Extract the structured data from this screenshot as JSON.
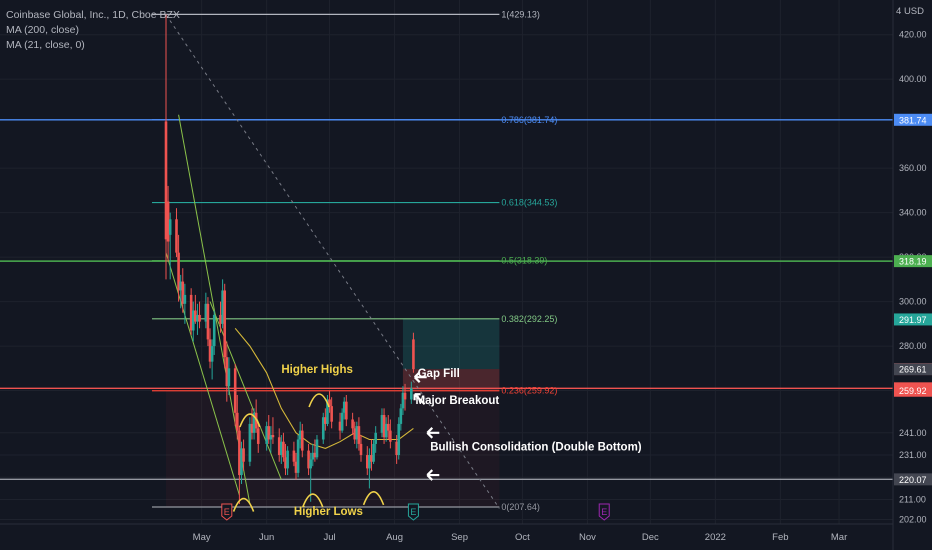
{
  "header": {
    "symbol_title": "Coinbase Global, Inc., 1D, Cboe BZX",
    "indicator_1": "MA (200, close)",
    "indicator_2": "MA (21, close, 0)",
    "currency": "USD",
    "currency_prefix": "4"
  },
  "colors": {
    "background": "#131722",
    "up": "#26a69a",
    "down": "#ef5350",
    "ma21": "#d4b83a",
    "annotation_yellow": "#f0d24a",
    "fib_level_1": "#b2b5be",
    "fib_0786": "#4c8cf5",
    "fib_0618": "#26a69a",
    "fib_05": "#4caf50",
    "fib_0382": "#81c784",
    "fib_0236": "#f44336",
    "fib_0": "#9598a1"
  },
  "chart_data": {
    "type": "candlestick",
    "ylim": [
      200,
      432
    ],
    "y_ticks": [
      202.0,
      211.0,
      221.0,
      231.0,
      241.0,
      260.0,
      280.0,
      300.0,
      320.0,
      340.0,
      360.0,
      400.0,
      420.0
    ],
    "x_ticks": [
      "May",
      "Jun",
      "Jul",
      "Aug",
      "Sep",
      "Oct",
      "Nov",
      "Dec",
      "2022",
      "Feb",
      "Mar"
    ],
    "x_tick_dates": [
      "2021-05-01",
      "2021-06-01",
      "2021-07-01",
      "2021-08-01",
      "2021-09-01",
      "2021-10-01",
      "2021-11-01",
      "2021-12-01",
      "2022-01-01",
      "2022-02-01",
      "2022-03-01"
    ],
    "price_labels": [
      {
        "text": "381.74",
        "value": 381.74,
        "color": "#4c8cf5"
      },
      {
        "text": "318.19",
        "value": 318.19,
        "color": "#4caf50"
      },
      {
        "text": "291.97",
        "value": 291.97,
        "color": "#26a69a"
      },
      {
        "text": "269.67",
        "value": 269.67,
        "color": "#ef5350"
      },
      {
        "text": "269.61",
        "value": 269.61,
        "color": "#434651"
      },
      {
        "text": "261.00",
        "value": 261.0,
        "color": "#ef5350"
      },
      {
        "text": "259.92",
        "value": 259.92,
        "color": "#ef5350"
      },
      {
        "text": "220.07",
        "value": 220.07,
        "color": "#434651"
      }
    ],
    "fib_levels": [
      {
        "label": "1(429.13)",
        "value": 429.13,
        "color": "#b2b5be"
      },
      {
        "label": "0.786(381.74)",
        "value": 381.74,
        "color": "#4c8cf5"
      },
      {
        "label": "0.618(344.53)",
        "value": 344.53,
        "color": "#26a69a"
      },
      {
        "label": "0.5(318.39)",
        "value": 318.39,
        "color": "#4caf50"
      },
      {
        "label": "0.382(292.25)",
        "value": 292.25,
        "color": "#81c784"
      },
      {
        "label": "0.236(259.92)",
        "value": 259.92,
        "color": "#f44336"
      },
      {
        "label": "0(207.64)",
        "value": 207.64,
        "color": "#9598a1"
      }
    ],
    "fib_range": {
      "start": "2021-04-14",
      "end": "2021-09-20"
    },
    "horizontal_lines": [
      {
        "value": 381.74,
        "color": "#4c8cf5"
      },
      {
        "value": 318.19,
        "color": "#4caf50"
      },
      {
        "value": 261.0,
        "color": "#ef5350"
      },
      {
        "value": 220.07,
        "color": "#9598a1"
      }
    ],
    "candles": [
      {
        "date": "2021-04-14",
        "o": 381,
        "h": 429,
        "l": 310,
        "c": 328
      },
      {
        "date": "2021-04-15",
        "o": 345,
        "h": 352,
        "l": 318,
        "c": 327
      },
      {
        "date": "2021-04-16",
        "o": 330,
        "h": 340,
        "l": 310,
        "c": 337
      },
      {
        "date": "2021-04-19",
        "o": 337,
        "h": 342,
        "l": 320,
        "c": 322
      },
      {
        "date": "2021-04-20",
        "o": 322,
        "h": 330,
        "l": 300,
        "c": 305
      },
      {
        "date": "2021-04-21",
        "o": 305,
        "h": 312,
        "l": 297,
        "c": 309
      },
      {
        "date": "2021-04-22",
        "o": 309,
        "h": 315,
        "l": 295,
        "c": 299
      },
      {
        "date": "2021-04-23",
        "o": 299,
        "h": 308,
        "l": 290,
        "c": 303
      },
      {
        "date": "2021-04-26",
        "o": 303,
        "h": 306,
        "l": 285,
        "c": 287
      },
      {
        "date": "2021-04-27",
        "o": 287,
        "h": 300,
        "l": 282,
        "c": 296
      },
      {
        "date": "2021-04-28",
        "o": 296,
        "h": 303,
        "l": 290,
        "c": 291
      },
      {
        "date": "2021-04-29",
        "o": 291,
        "h": 299,
        "l": 285,
        "c": 294
      },
      {
        "date": "2021-04-30",
        "o": 294,
        "h": 300,
        "l": 288,
        "c": 291
      },
      {
        "date": "2021-05-03",
        "o": 291,
        "h": 304,
        "l": 288,
        "c": 299
      },
      {
        "date": "2021-05-04",
        "o": 299,
        "h": 302,
        "l": 280,
        "c": 283
      },
      {
        "date": "2021-05-05",
        "o": 283,
        "h": 288,
        "l": 270,
        "c": 273
      },
      {
        "date": "2021-05-06",
        "o": 273,
        "h": 283,
        "l": 265,
        "c": 280
      },
      {
        "date": "2021-05-07",
        "o": 280,
        "h": 296,
        "l": 276,
        "c": 294
      },
      {
        "date": "2021-05-10",
        "o": 294,
        "h": 300,
        "l": 286,
        "c": 290
      },
      {
        "date": "2021-05-11",
        "o": 290,
        "h": 310,
        "l": 288,
        "c": 305
      },
      {
        "date": "2021-05-12",
        "o": 305,
        "h": 308,
        "l": 270,
        "c": 275
      },
      {
        "date": "2021-05-13",
        "o": 275,
        "h": 282,
        "l": 255,
        "c": 262
      },
      {
        "date": "2021-05-14",
        "o": 262,
        "h": 275,
        "l": 258,
        "c": 270
      },
      {
        "date": "2021-05-17",
        "o": 270,
        "h": 272,
        "l": 244,
        "c": 250
      },
      {
        "date": "2021-05-18",
        "o": 250,
        "h": 258,
        "l": 238,
        "c": 242
      },
      {
        "date": "2021-05-19",
        "o": 242,
        "h": 244,
        "l": 209,
        "c": 222
      },
      {
        "date": "2021-05-20",
        "o": 222,
        "h": 237,
        "l": 218,
        "c": 234
      },
      {
        "date": "2021-05-21",
        "o": 234,
        "h": 238,
        "l": 224,
        "c": 228
      },
      {
        "date": "2021-05-24",
        "o": 228,
        "h": 248,
        "l": 226,
        "c": 245
      },
      {
        "date": "2021-05-25",
        "o": 245,
        "h": 252,
        "l": 238,
        "c": 241
      },
      {
        "date": "2021-05-26",
        "o": 241,
        "h": 252,
        "l": 238,
        "c": 250
      },
      {
        "date": "2021-05-27",
        "o": 250,
        "h": 256,
        "l": 241,
        "c": 243
      },
      {
        "date": "2021-05-28",
        "o": 243,
        "h": 246,
        "l": 232,
        "c": 236
      },
      {
        "date": "2021-06-01",
        "o": 236,
        "h": 246,
        "l": 233,
        "c": 244
      },
      {
        "date": "2021-06-02",
        "o": 244,
        "h": 249,
        "l": 236,
        "c": 238
      },
      {
        "date": "2021-06-03",
        "o": 238,
        "h": 244,
        "l": 232,
        "c": 240
      },
      {
        "date": "2021-06-04",
        "o": 240,
        "h": 248,
        "l": 236,
        "c": 239
      },
      {
        "date": "2021-06-07",
        "o": 239,
        "h": 243,
        "l": 228,
        "c": 231
      },
      {
        "date": "2021-06-08",
        "o": 231,
        "h": 240,
        "l": 227,
        "c": 237
      },
      {
        "date": "2021-06-09",
        "o": 237,
        "h": 241,
        "l": 228,
        "c": 230
      },
      {
        "date": "2021-06-10",
        "o": 230,
        "h": 236,
        "l": 222,
        "c": 225
      },
      {
        "date": "2021-06-11",
        "o": 225,
        "h": 235,
        "l": 222,
        "c": 233
      },
      {
        "date": "2021-06-14",
        "o": 233,
        "h": 237,
        "l": 226,
        "c": 228
      },
      {
        "date": "2021-06-15",
        "o": 228,
        "h": 232,
        "l": 220,
        "c": 223
      },
      {
        "date": "2021-06-16",
        "o": 223,
        "h": 240,
        "l": 221,
        "c": 238
      },
      {
        "date": "2021-06-17",
        "o": 238,
        "h": 246,
        "l": 234,
        "c": 242
      },
      {
        "date": "2021-06-18",
        "o": 242,
        "h": 245,
        "l": 230,
        "c": 233
      },
      {
        "date": "2021-06-21",
        "o": 233,
        "h": 236,
        "l": 222,
        "c": 225
      },
      {
        "date": "2021-06-22",
        "o": 225,
        "h": 232,
        "l": 210,
        "c": 229
      },
      {
        "date": "2021-06-23",
        "o": 229,
        "h": 236,
        "l": 226,
        "c": 232
      },
      {
        "date": "2021-06-24",
        "o": 232,
        "h": 238,
        "l": 228,
        "c": 230
      },
      {
        "date": "2021-06-25",
        "o": 230,
        "h": 240,
        "l": 229,
        "c": 238
      },
      {
        "date": "2021-06-28",
        "o": 238,
        "h": 250,
        "l": 236,
        "c": 248
      },
      {
        "date": "2021-06-29",
        "o": 248,
        "h": 252,
        "l": 242,
        "c": 245
      },
      {
        "date": "2021-06-30",
        "o": 245,
        "h": 258,
        "l": 244,
        "c": 256
      },
      {
        "date": "2021-07-01",
        "o": 256,
        "h": 260,
        "l": 250,
        "c": 253
      },
      {
        "date": "2021-07-02",
        "o": 253,
        "h": 257,
        "l": 243,
        "c": 246
      },
      {
        "date": "2021-07-06",
        "o": 246,
        "h": 250,
        "l": 238,
        "c": 242
      },
      {
        "date": "2021-07-07",
        "o": 242,
        "h": 252,
        "l": 241,
        "c": 250
      },
      {
        "date": "2021-07-08",
        "o": 250,
        "h": 257,
        "l": 247,
        "c": 255
      },
      {
        "date": "2021-07-09",
        "o": 255,
        "h": 258,
        "l": 244,
        "c": 247
      },
      {
        "date": "2021-07-12",
        "o": 247,
        "h": 250,
        "l": 240,
        "c": 243
      },
      {
        "date": "2021-07-13",
        "o": 243,
        "h": 246,
        "l": 236,
        "c": 238
      },
      {
        "date": "2021-07-14",
        "o": 238,
        "h": 246,
        "l": 234,
        "c": 244
      },
      {
        "date": "2021-07-15",
        "o": 244,
        "h": 248,
        "l": 233,
        "c": 236
      },
      {
        "date": "2021-07-16",
        "o": 236,
        "h": 240,
        "l": 228,
        "c": 231
      },
      {
        "date": "2021-07-19",
        "o": 231,
        "h": 235,
        "l": 222,
        "c": 225
      },
      {
        "date": "2021-07-20",
        "o": 225,
        "h": 234,
        "l": 216,
        "c": 231
      },
      {
        "date": "2021-07-21",
        "o": 231,
        "h": 238,
        "l": 224,
        "c": 228
      },
      {
        "date": "2021-07-22",
        "o": 228,
        "h": 238,
        "l": 227,
        "c": 236
      },
      {
        "date": "2021-07-23",
        "o": 236,
        "h": 244,
        "l": 232,
        "c": 241
      },
      {
        "date": "2021-07-26",
        "o": 241,
        "h": 252,
        "l": 239,
        "c": 249
      },
      {
        "date": "2021-07-27",
        "o": 249,
        "h": 252,
        "l": 236,
        "c": 239
      },
      {
        "date": "2021-07-28",
        "o": 239,
        "h": 248,
        "l": 237,
        "c": 245
      },
      {
        "date": "2021-07-29",
        "o": 245,
        "h": 249,
        "l": 238,
        "c": 242
      },
      {
        "date": "2021-07-30",
        "o": 242,
        "h": 247,
        "l": 234,
        "c": 237
      },
      {
        "date": "2021-08-02",
        "o": 237,
        "h": 240,
        "l": 227,
        "c": 231
      },
      {
        "date": "2021-08-03",
        "o": 231,
        "h": 248,
        "l": 229,
        "c": 245
      },
      {
        "date": "2021-08-04",
        "o": 245,
        "h": 254,
        "l": 242,
        "c": 252
      },
      {
        "date": "2021-08-05",
        "o": 252,
        "h": 262,
        "l": 249,
        "c": 259
      },
      {
        "date": "2021-08-06",
        "o": 259,
        "h": 263,
        "l": 251,
        "c": 256
      },
      {
        "date": "2021-08-09",
        "o": 256,
        "h": 264,
        "l": 254,
        "c": 261
      },
      {
        "date": "2021-08-10",
        "o": 283,
        "h": 286,
        "l": 268,
        "c": 269.61
      }
    ],
    "ma21": [
      {
        "date": "2021-05-17",
        "value": 288
      },
      {
        "date": "2021-05-24",
        "value": 280
      },
      {
        "date": "2021-06-01",
        "value": 268
      },
      {
        "date": "2021-06-08",
        "value": 252
      },
      {
        "date": "2021-06-15",
        "value": 241
      },
      {
        "date": "2021-06-22",
        "value": 236
      },
      {
        "date": "2021-06-29",
        "value": 234
      },
      {
        "date": "2021-07-06",
        "value": 237
      },
      {
        "date": "2021-07-13",
        "value": 241
      },
      {
        "date": "2021-07-20",
        "value": 238
      },
      {
        "date": "2021-07-27",
        "value": 238
      },
      {
        "date": "2021-08-03",
        "value": 238
      },
      {
        "date": "2021-08-10",
        "value": 243
      }
    ],
    "trendlines": [
      {
        "color": "#8bc34a",
        "from": {
          "date": "2021-04-20",
          "value": 384
        },
        "to": {
          "date": "2021-05-24",
          "value": 209
        }
      },
      {
        "color": "#8bc34a",
        "from": {
          "date": "2021-04-14",
          "value": 322
        },
        "to": {
          "date": "2021-05-19",
          "value": 213
        }
      },
      {
        "color": "#8bc34a",
        "from": {
          "date": "2021-05-05",
          "value": 300
        },
        "to": {
          "date": "2021-06-08",
          "value": 220
        }
      },
      {
        "color": "#787b86",
        "dashed": true,
        "from": {
          "date": "2021-04-14",
          "value": 429
        },
        "to": {
          "date": "2021-09-20",
          "value": 207
        }
      }
    ],
    "trade_zone": {
      "start": "2021-08-05",
      "end": "2021-09-20",
      "target": 292.25,
      "entry": 269.67,
      "stop": 259.92
    },
    "annotations": [
      {
        "text": "Higher Highs",
        "color": "#f0d24a",
        "date": "2021-06-08",
        "value": 268
      },
      {
        "text": "Higher Lows",
        "color": "#f0d24a",
        "date": "2021-06-14",
        "value": 204
      },
      {
        "text": "Gap Fill",
        "color": "#ffffff",
        "date": "2021-08-12",
        "value": 266
      },
      {
        "text": "Major Breakout",
        "color": "#ffffff",
        "date": "2021-08-11",
        "value": 254
      },
      {
        "text": "Bullish Consolidation (Double Bottom)",
        "color": "#ffffff",
        "date": "2021-08-18",
        "value": 233
      }
    ],
    "arrows": [
      {
        "direction": "left",
        "date": "2021-08-13",
        "value": 266
      },
      {
        "direction": "upleft",
        "date": "2021-08-12",
        "value": 257
      },
      {
        "direction": "left",
        "date": "2021-08-19",
        "value": 241
      },
      {
        "direction": "left",
        "date": "2021-08-19",
        "value": 222
      }
    ],
    "earnings_markers": [
      {
        "date": "2021-05-13",
        "status": "past",
        "color": "#ef5350",
        "label": "E"
      },
      {
        "date": "2021-08-10",
        "status": "past",
        "color": "#26a69a",
        "label": "E"
      },
      {
        "date": "2021-11-09",
        "status": "upcoming",
        "color": "#9c27b0",
        "label": "E"
      }
    ],
    "curves": [
      {
        "name": "higher-high-1",
        "center": {
          "date": "2021-05-24",
          "value": 249
        }
      },
      {
        "name": "higher-high-2",
        "center": {
          "date": "2021-06-26",
          "value": 258
        }
      },
      {
        "name": "higher-low-1",
        "center": {
          "date": "2021-05-21",
          "value": 211
        }
      },
      {
        "name": "higher-low-2",
        "center": {
          "date": "2021-06-23",
          "value": 213
        }
      },
      {
        "name": "higher-low-3",
        "center": {
          "date": "2021-07-22",
          "value": 214
        }
      }
    ]
  }
}
